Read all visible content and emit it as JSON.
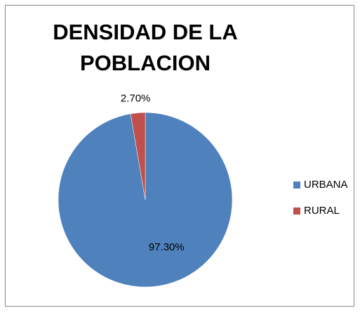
{
  "chart_data": {
    "type": "pie",
    "title": "DENSIDAD DE LA POBLACION",
    "categories": [
      "URBANA",
      "RURAL"
    ],
    "values": [
      97.3,
      2.7
    ],
    "value_labels": [
      "97.30%",
      "2.70%"
    ],
    "colors": [
      "#4f81bd",
      "#c0504d"
    ],
    "legend": "right"
  }
}
